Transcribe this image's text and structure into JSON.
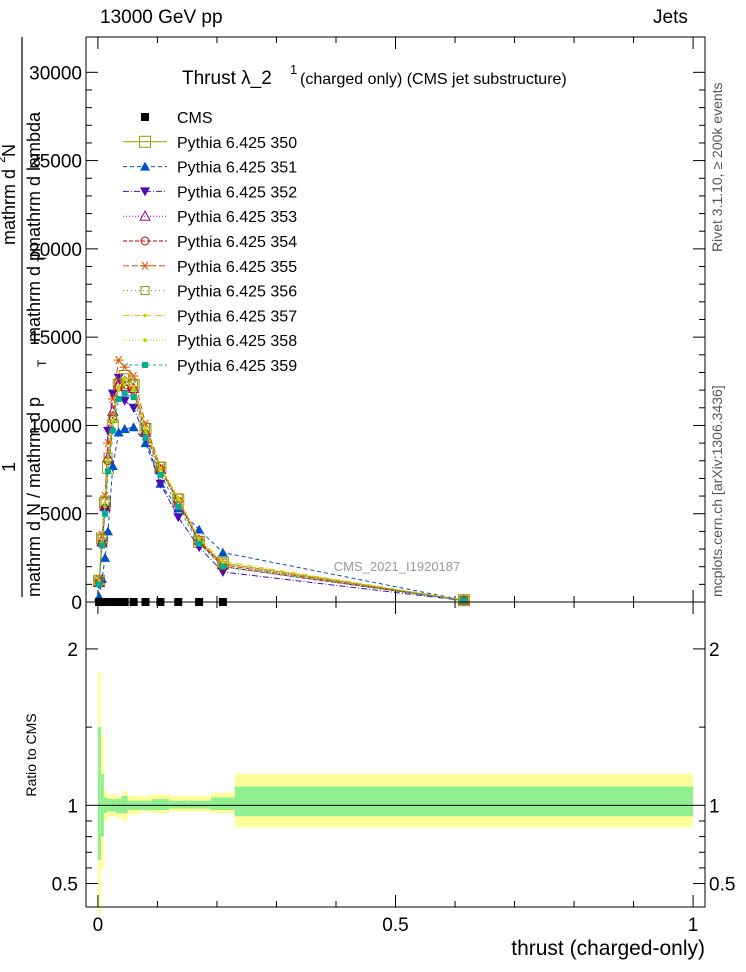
{
  "header": {
    "left": "13000 GeV pp",
    "right": "Jets"
  },
  "side_labels": {
    "rivet": "Rivet 3.1.10, ≥ 200k events",
    "mcplots": "mcplots.cern.ch [arXiv:1306.3436]"
  },
  "chart_data": [
    {
      "type": "line",
      "title": "Thrust λ_2^1 (charged only) (CMS jet substructure)",
      "title_main": "Thrust λ_2",
      "title_sup": "1",
      "title_rest": " (charged only) (CMS jet substructure)",
      "watermark": "CMS_2021_I1920187",
      "ylabel": "1 / mathrm d N / mathrm d p_T mathrm d^2N / mathrm d p_T mathrm d lambda",
      "ylabel_parts": {
        "frac_one": "1",
        "denominator": "mathrm d N / mathrm d p",
        "denominator_sub": "T",
        "numerator": "mathrm d",
        "numerator_sup": "2",
        "numerator_rest": "N",
        "numerator_line2": "mathrm d p",
        "numerator_line2_sub": "T",
        "numerator_line2_rest": " mathrm d lambda"
      },
      "xlim": [
        -0.02,
        1.02
      ],
      "ylim": [
        0,
        32000
      ],
      "y_ticks": [
        0,
        5000,
        10000,
        15000,
        20000,
        25000,
        30000
      ],
      "y_tick_labels": [
        "0",
        "5000",
        "10000",
        "15000",
        "20000",
        "25000",
        "30000"
      ],
      "legend_position": "top-left",
      "cms_points": {
        "name": "CMS",
        "x": [
          0.002,
          0.007,
          0.012,
          0.017,
          0.025,
          0.035,
          0.045,
          0.06,
          0.08,
          0.105,
          0.135,
          0.17,
          0.21
        ],
        "y": [
          0,
          0,
          0,
          0,
          0,
          0,
          0,
          0,
          0,
          0,
          0,
          0,
          0
        ]
      },
      "series": [
        {
          "name": "Pythia 6.425 350",
          "color": "#9a9a00",
          "marker": "square-open",
          "dash": "",
          "y": [
            1200,
            3600,
            5600,
            7600,
            10000,
            12300,
            12800,
            12300,
            9800,
            7600,
            5800,
            3400,
            2200,
            100
          ]
        },
        {
          "name": "Pythia 6.425 351",
          "color": "#0050c8",
          "marker": "triangle-up",
          "dash": "4,3",
          "y": [
            300,
            1300,
            2500,
            4000,
            7700,
            9600,
            9800,
            9900,
            9000,
            6700,
            5300,
            4100,
            2800,
            100
          ]
        },
        {
          "name": "Pythia 6.425 352",
          "color": "#4b0eb4",
          "marker": "triangle-down",
          "dash": "6,2,1,2",
          "y": [
            1000,
            3300,
            5200,
            9700,
            11800,
            12700,
            11400,
            11000,
            9300,
            6700,
            4800,
            3100,
            1700,
            80
          ]
        },
        {
          "name": "Pythia 6.425 353",
          "color": "#a000a0",
          "marker": "triangle-open",
          "dash": "1,2",
          "y": [
            1100,
            3400,
            5400,
            8200,
            10800,
            12400,
            12200,
            12100,
            9600,
            7500,
            5600,
            3500,
            2100,
            90
          ]
        },
        {
          "name": "Pythia 6.425 354",
          "color": "#c80000",
          "marker": "circle-open",
          "dash": "4,2",
          "y": [
            1100,
            3300,
            5300,
            8000,
            10500,
            12200,
            12100,
            12000,
            9500,
            7500,
            5700,
            3400,
            2000,
            90
          ]
        },
        {
          "name": "Pythia 6.425 355",
          "color": "#e05000",
          "marker": "star",
          "dash": "6,3",
          "y": [
            1300,
            3800,
            6000,
            9000,
            11500,
            13700,
            13300,
            12800,
            10100,
            7600,
            5700,
            3500,
            2100,
            100
          ]
        },
        {
          "name": "Pythia 6.425 356",
          "color": "#889000",
          "marker": "square-open-small",
          "dash": "1,3",
          "y": [
            1200,
            3600,
            5700,
            8200,
            10400,
            12400,
            12700,
            12300,
            9900,
            7700,
            5900,
            3500,
            2200,
            110
          ]
        },
        {
          "name": "Pythia 6.425 357",
          "color": "#e8c000",
          "marker": "dot",
          "dash": "6,2,1,2",
          "y": [
            1200,
            3500,
            5600,
            8000,
            10300,
            12200,
            12600,
            12200,
            9800,
            7600,
            5900,
            3600,
            2300,
            110
          ]
        },
        {
          "name": "Pythia 6.425 358",
          "color": "#a8e000",
          "marker": "dot",
          "dash": "1,2",
          "y": [
            1100,
            3400,
            5400,
            7900,
            10200,
            12000,
            12300,
            12000,
            9600,
            7500,
            5800,
            3500,
            2200,
            100
          ]
        },
        {
          "name": "Pythia 6.425 359",
          "color": "#00b090",
          "marker": "square-small",
          "dash": "3,3",
          "y": [
            1000,
            3200,
            5000,
            7400,
            9700,
            11500,
            11800,
            11600,
            9300,
            7200,
            5400,
            3300,
            2000,
            90
          ]
        }
      ],
      "x_points": [
        0.002,
        0.007,
        0.012,
        0.017,
        0.025,
        0.035,
        0.045,
        0.06,
        0.08,
        0.105,
        0.135,
        0.17,
        0.21,
        0.615
      ]
    },
    {
      "type": "area",
      "ylabel": "Ratio to CMS",
      "xlabel": "thrust (charged-only)",
      "xlim": [
        -0.02,
        1.02
      ],
      "ylim": [
        0.35,
        2.3
      ],
      "y_ticks": [
        0.5,
        1,
        2
      ],
      "y_tick_labels": [
        "0.5",
        "1",
        "2"
      ],
      "x_ticks": [
        0,
        0.5,
        1
      ],
      "x_tick_labels": [
        "0",
        "0.5",
        "1"
      ],
      "bands": {
        "edges": [
          0,
          0.005,
          0.01,
          0.015,
          0.02,
          0.03,
          0.04,
          0.05,
          0.07,
          0.09,
          0.12,
          0.15,
          0.19,
          0.23,
          1.0
        ],
        "yellow_lo": [
          0.3,
          0.6,
          0.9,
          0.92,
          0.93,
          0.92,
          0.9,
          0.94,
          0.96,
          0.95,
          0.96,
          0.96,
          0.95,
          0.86
        ],
        "yellow_hi": [
          1.85,
          1.45,
          1.1,
          1.07,
          1.07,
          1.06,
          1.09,
          1.06,
          1.06,
          1.07,
          1.06,
          1.06,
          1.08,
          1.2
        ],
        "green_lo": [
          0.65,
          0.8,
          0.95,
          0.96,
          0.96,
          0.95,
          0.95,
          0.97,
          0.97,
          0.97,
          0.98,
          0.98,
          0.97,
          0.93
        ],
        "green_hi": [
          1.5,
          1.2,
          1.05,
          1.04,
          1.04,
          1.04,
          1.06,
          1.03,
          1.03,
          1.04,
          1.03,
          1.03,
          1.05,
          1.12
        ]
      }
    }
  ]
}
